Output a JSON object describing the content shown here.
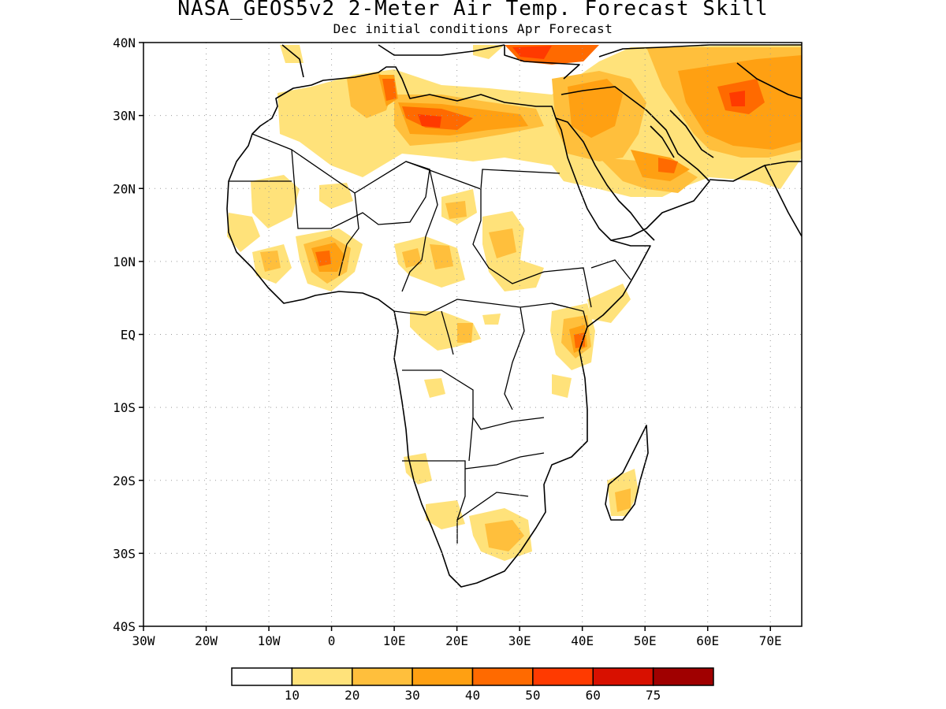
{
  "title": "NASA_GEOS5v2 2-Meter Air Temp. Forecast Skill",
  "subtitle": "Dec initial conditions  Apr Forecast",
  "map": {
    "lon_range": [
      -30,
      75
    ],
    "lat_range": [
      -40,
      40
    ],
    "gridlines": "dotted",
    "lat_labels": [
      "40N",
      "30N",
      "20N",
      "10N",
      "EQ",
      "10S",
      "20S",
      "30S",
      "40S"
    ],
    "lon_labels": [
      "30W",
      "20W",
      "10W",
      "0",
      "10E",
      "20E",
      "30E",
      "40E",
      "50E",
      "60E",
      "70E"
    ]
  },
  "colorbar": {
    "labels": [
      "10",
      "20",
      "30",
      "40",
      "50",
      "60",
      "75"
    ],
    "colors": [
      "#ffffff",
      "#ffe27a",
      "#ffbf3c",
      "#ffa012",
      "#ff6a00",
      "#ff3a00",
      "#d81000",
      "#a00000"
    ]
  }
}
